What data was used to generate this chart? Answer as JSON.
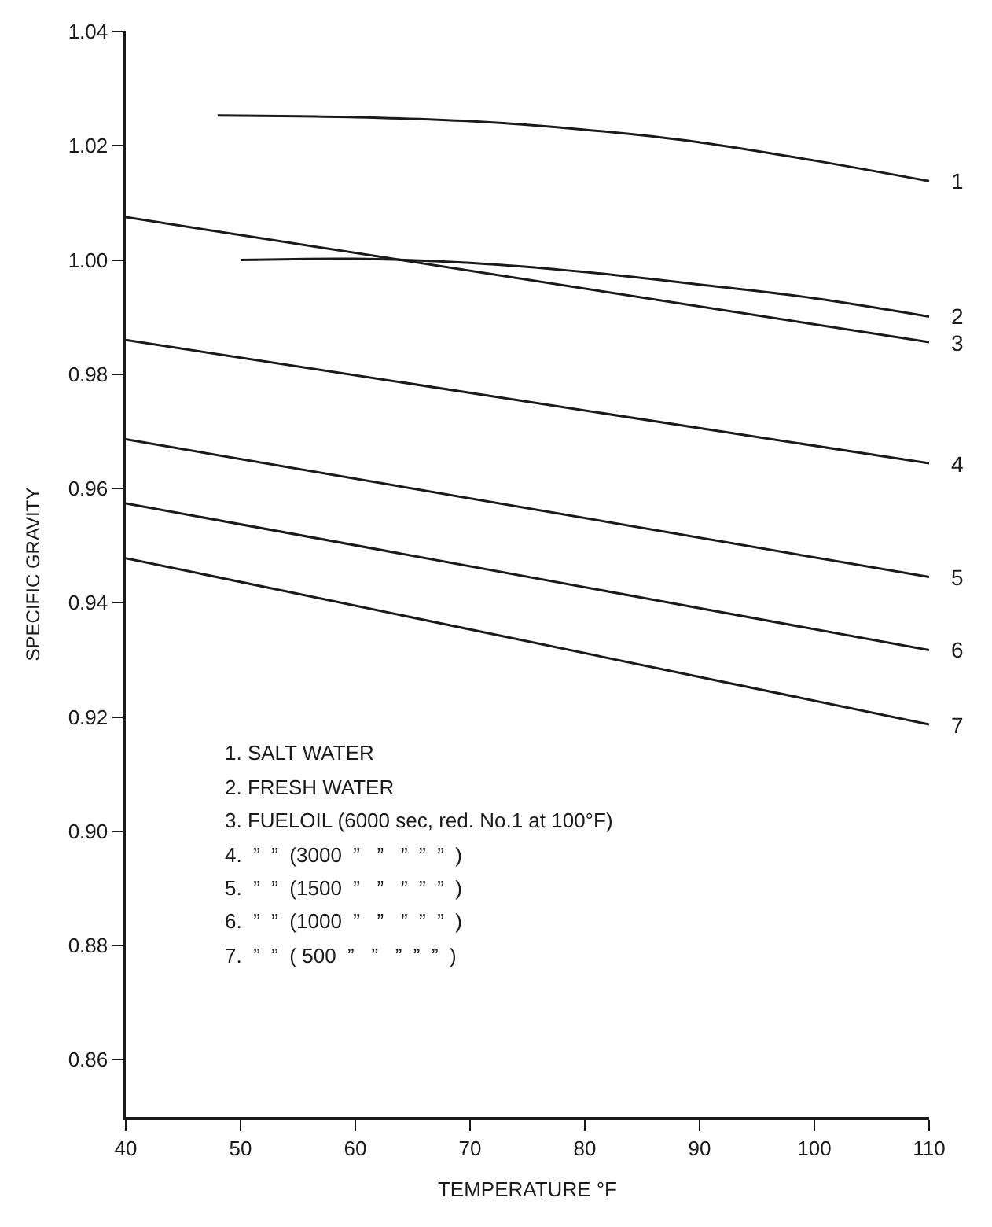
{
  "chart_data": {
    "type": "line",
    "xlabel": "TEMPERATURE °F",
    "ylabel": "SPECIFIC GRAVITY",
    "xlim": [
      40,
      110
    ],
    "xticks": [
      40,
      50,
      60,
      70,
      80,
      90,
      100,
      110
    ],
    "ylim": [
      0.85,
      1.04
    ],
    "yticks": [
      0.86,
      0.88,
      {
        "value": 0.9,
        "label": "0.90"
      },
      0.92,
      0.94,
      0.96,
      0.98,
      {
        "value": 1.0,
        "label": "1.00"
      },
      1.02,
      1.04
    ],
    "grid": false,
    "legend": false,
    "marker": "none",
    "line_style": "solid",
    "series": [
      {
        "name": "1",
        "color": "#1a1a1a",
        "x": [
          48,
          60,
          70,
          80,
          90,
          100,
          110
        ],
        "values": [
          1.0253,
          1.025,
          1.0243,
          1.0228,
          1.0206,
          1.0174,
          1.0138
        ]
      },
      {
        "name": "2",
        "color": "#1a1a1a",
        "x": [
          50,
          60,
          70,
          80,
          90,
          100,
          110
        ],
        "values": [
          1.0,
          1.0002,
          0.9995,
          0.9979,
          0.9957,
          0.9933,
          0.9901
        ]
      },
      {
        "name": "3",
        "color": "#1a1a1a",
        "x": [
          40,
          110
        ],
        "values": [
          1.0075,
          0.9856
        ]
      },
      {
        "name": "4",
        "color": "#1a1a1a",
        "x": [
          40,
          110
        ],
        "values": [
          0.986,
          0.9644
        ]
      },
      {
        "name": "5",
        "color": "#1a1a1a",
        "x": [
          40,
          110
        ],
        "values": [
          0.9686,
          0.9445
        ]
      },
      {
        "name": "6",
        "color": "#1a1a1a",
        "x": [
          40,
          110
        ],
        "values": [
          0.9574,
          0.9317
        ]
      },
      {
        "name": "7",
        "color": "#1a1a1a",
        "x": [
          40,
          110
        ],
        "values": [
          0.9478,
          0.9187
        ]
      }
    ],
    "annotations": [
      "1. SALT WATER",
      "2. FRESH WATER",
      "3. FUELOIL (6000 sec, red. No.1 at 100°F)",
      "4.  ”  ”  (3000  ”   ”   ”  ”  ”  )",
      "5.  ”  ”  (1500  ”   ”   ”  ”  ”  )",
      "6.  ”  ”  (1000  ”   ”   ”  ”  ”  )",
      "7.  ”  ”  ( 500  ”   ”   ”  ”  ”  )"
    ]
  }
}
